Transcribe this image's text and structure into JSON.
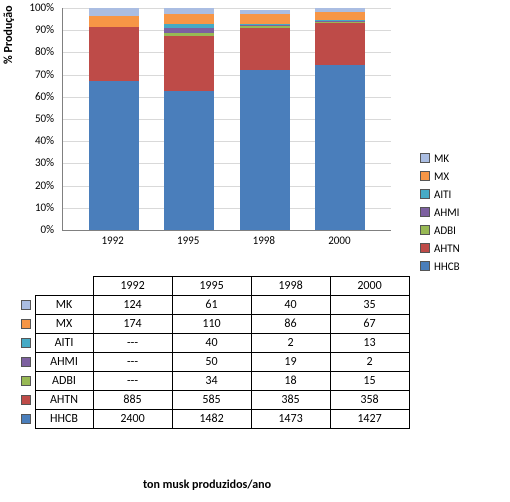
{
  "chart": {
    "type": "stacked-bar-100",
    "ylabel": "% Produção",
    "xlabel": "ton musk produzidos/ano",
    "categories": [
      "1992",
      "1995",
      "1998",
      "2000"
    ],
    "ylim": [
      0,
      100
    ],
    "ytick_step": 10,
    "yticks": [
      "0%",
      "10%",
      "20%",
      "30%",
      "40%",
      "50%",
      "60%",
      "70%",
      "80%",
      "90%",
      "100%"
    ],
    "plot_bg": "#ffffff",
    "grid_color": "#d9d9d9",
    "label_fontsize": 11,
    "title_fontsize": 12,
    "series": [
      {
        "key": "HHCB",
        "label": "HHCB",
        "color": "#4a7ebb"
      },
      {
        "key": "AHTN",
        "label": "AHTN",
        "color": "#be4b48"
      },
      {
        "key": "ADBI",
        "label": "ADBI",
        "color": "#98b954"
      },
      {
        "key": "AHMI",
        "label": "AHMI",
        "color": "#7d60a0"
      },
      {
        "key": "AITI",
        "label": "AITI",
        "color": "#46aac5"
      },
      {
        "key": "MX",
        "label": "MX",
        "color": "#f79646"
      },
      {
        "key": "MK",
        "label": "MK",
        "color": "#aabde2"
      }
    ],
    "legend_order": [
      "MK",
      "MX",
      "AITI",
      "AHMI",
      "ADBI",
      "AHTN",
      "HHCB"
    ],
    "values_pct": {
      "1992": {
        "HHCB": 66.97,
        "AHTN": 24.69,
        "ADBI": 0,
        "AHMI": 0,
        "AITI": 0,
        "MX": 4.86,
        "MK": 3.46
      },
      "1995": {
        "HHCB": 62.74,
        "AHTN": 24.77,
        "ADBI": 1.44,
        "AHMI": 2.12,
        "AITI": 1.69,
        "MX": 4.66,
        "MK": 2.58
      },
      "1998": {
        "HHCB": 72.17,
        "AHTN": 18.86,
        "ADBI": 0.88,
        "AHMI": 0.93,
        "AITI": 0.1,
        "MX": 4.21,
        "MK": 1.96
      },
      "2000": {
        "HHCB": 74.43,
        "AHTN": 18.67,
        "ADBI": 0.78,
        "AHMI": 0.1,
        "AITI": 0.68,
        "MX": 3.49,
        "MK": 1.83
      }
    }
  },
  "table": {
    "years": [
      "1992",
      "1995",
      "1998",
      "2000"
    ],
    "rows": [
      {
        "key": "MK",
        "label": "MK",
        "color": "#aabde2",
        "vals": [
          "124",
          "61",
          "40",
          "35"
        ]
      },
      {
        "key": "MX",
        "label": "MX",
        "color": "#f79646",
        "vals": [
          "174",
          "110",
          "86",
          "67"
        ]
      },
      {
        "key": "AITI",
        "label": "AITI",
        "color": "#46aac5",
        "vals": [
          "---",
          "40",
          "2",
          "13"
        ]
      },
      {
        "key": "AHMI",
        "label": "AHMI",
        "color": "#7d60a0",
        "vals": [
          "---",
          "50",
          "19",
          "2"
        ]
      },
      {
        "key": "ADBI",
        "label": "ADBI",
        "color": "#98b954",
        "vals": [
          "---",
          "34",
          "18",
          "15"
        ]
      },
      {
        "key": "AHTN",
        "label": "AHTN",
        "color": "#be4b48",
        "vals": [
          "885",
          "585",
          "385",
          "358"
        ]
      },
      {
        "key": "HHCB",
        "label": "HHCB",
        "color": "#4a7ebb",
        "vals": [
          "2400",
          "1482",
          "1473",
          "1427"
        ]
      }
    ]
  }
}
